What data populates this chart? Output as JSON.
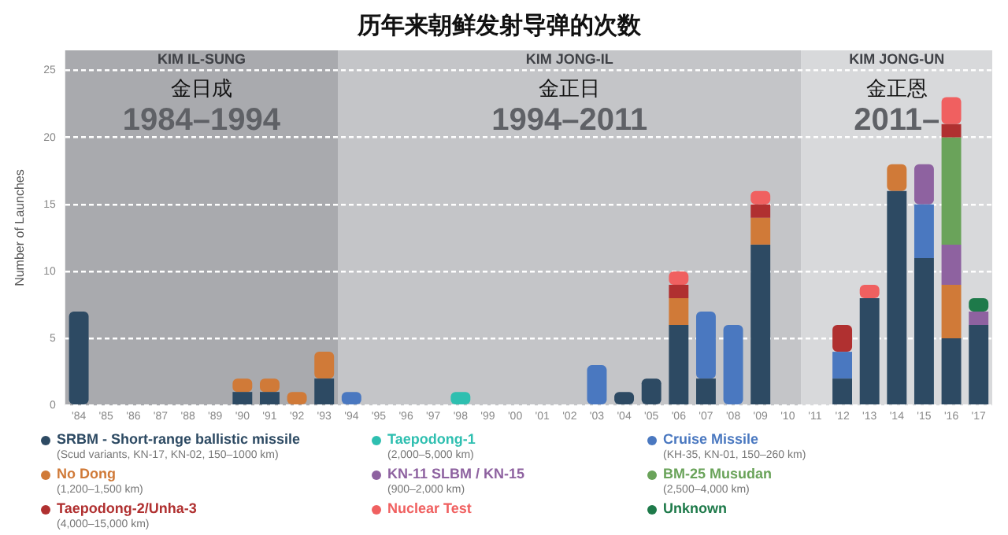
{
  "chart_data": {
    "type": "bar",
    "title": "历年来朝鲜发射导弹的次数",
    "ylabel": "Number of Launches",
    "categories": [
      "'84",
      "'85",
      "'86",
      "'87",
      "'88",
      "'89",
      "'90",
      "'91",
      "'92",
      "'93",
      "'94",
      "'95",
      "'96",
      "'97",
      "'98",
      "'99",
      "'00",
      "'01",
      "'02",
      "'03",
      "'04",
      "'05",
      "'06",
      "'07",
      "'08",
      "'09",
      "'10",
      "'11",
      "'12",
      "'13",
      "'14",
      "'15",
      "'16",
      "'17"
    ],
    "stacked": true,
    "ylim": [
      0,
      26.5
    ],
    "yticks": [
      0,
      5,
      10,
      15,
      20,
      25
    ],
    "grid": "y",
    "legend": "bottom",
    "series": [
      {
        "name": "SRBM - Short-range ballistic missile",
        "color": "#2d4a63",
        "values": [
          7,
          0,
          0,
          0,
          0,
          0,
          1,
          1,
          0,
          2,
          0,
          0,
          0,
          0,
          0,
          0,
          0,
          0,
          0,
          0,
          1,
          2,
          6,
          2,
          0,
          12,
          0,
          0,
          2,
          8,
          16,
          11,
          5,
          6
        ]
      },
      {
        "name": "Taepodong-1",
        "color": "#2ebfb0",
        "values": [
          0,
          0,
          0,
          0,
          0,
          0,
          0,
          0,
          0,
          0,
          0,
          0,
          0,
          0,
          1,
          0,
          0,
          0,
          0,
          0,
          0,
          0,
          0,
          0,
          0,
          0,
          0,
          0,
          0,
          0,
          0,
          0,
          0,
          0
        ]
      },
      {
        "name": "Cruise Missile",
        "color": "#4a78c0",
        "values": [
          0,
          0,
          0,
          0,
          0,
          0,
          0,
          0,
          0,
          0,
          1,
          0,
          0,
          0,
          0,
          0,
          0,
          0,
          0,
          3,
          0,
          0,
          0,
          5,
          6,
          0,
          0,
          0,
          2,
          0,
          0,
          4,
          0,
          0
        ]
      },
      {
        "name": "No Dong",
        "color": "#d07a38",
        "values": [
          0,
          0,
          0,
          0,
          0,
          0,
          1,
          1,
          1,
          2,
          0,
          0,
          0,
          0,
          0,
          0,
          0,
          0,
          0,
          0,
          0,
          0,
          2,
          0,
          0,
          2,
          0,
          0,
          0,
          0,
          2,
          0,
          4,
          0
        ]
      },
      {
        "name": "KN-11 SLBM / KN-15",
        "color": "#8e62a0",
        "values": [
          0,
          0,
          0,
          0,
          0,
          0,
          0,
          0,
          0,
          0,
          0,
          0,
          0,
          0,
          0,
          0,
          0,
          0,
          0,
          0,
          0,
          0,
          0,
          0,
          0,
          0,
          0,
          0,
          0,
          0,
          0,
          3,
          3,
          1
        ]
      },
      {
        "name": "BM-25 Musudan",
        "color": "#6aa35a",
        "values": [
          0,
          0,
          0,
          0,
          0,
          0,
          0,
          0,
          0,
          0,
          0,
          0,
          0,
          0,
          0,
          0,
          0,
          0,
          0,
          0,
          0,
          0,
          0,
          0,
          0,
          0,
          0,
          0,
          0,
          0,
          0,
          0,
          8,
          0
        ]
      },
      {
        "name": "Taepodong-2/Unha-3",
        "color": "#b03030",
        "values": [
          0,
          0,
          0,
          0,
          0,
          0,
          0,
          0,
          0,
          0,
          0,
          0,
          0,
          0,
          0,
          0,
          0,
          0,
          0,
          0,
          0,
          0,
          1,
          0,
          0,
          1,
          0,
          0,
          2,
          0,
          0,
          0,
          1,
          0
        ]
      },
      {
        "name": "Nuclear Test",
        "color": "#f06060",
        "values": [
          0,
          0,
          0,
          0,
          0,
          0,
          0,
          0,
          0,
          0,
          0,
          0,
          0,
          0,
          0,
          0,
          0,
          0,
          0,
          0,
          0,
          0,
          1,
          0,
          0,
          1,
          0,
          0,
          0,
          1,
          0,
          0,
          2,
          0
        ]
      },
      {
        "name": "Unknown",
        "color": "#1e7a4a",
        "values": [
          0,
          0,
          0,
          0,
          0,
          0,
          0,
          0,
          0,
          0,
          0,
          0,
          0,
          0,
          0,
          0,
          0,
          0,
          0,
          0,
          0,
          0,
          0,
          0,
          0,
          0,
          0,
          0,
          0,
          0,
          0,
          0,
          0,
          1
        ]
      }
    ],
    "annotations": [
      "(Scud variants, KN-17, KN-02, 150–1000 km)",
      "(2,000–5,000 km)",
      "(KH-35, KN-01, 150–260 km)",
      "(1,200–1,500 km)",
      "(900–2,000 km)",
      "(2,500–4,000 km)",
      "(4,000–15,000 km)"
    ],
    "bands": [
      {
        "axis": "x",
        "from": "'84",
        "to": "'94",
        "label": "KIM IL-SUNG\n金日成\n1984–1994",
        "color": "#a9aaae"
      },
      {
        "axis": "x",
        "from": "'94",
        "to": "'11",
        "label": "KIM JONG-IL\n金正日\n1994–2011",
        "color": "#c4c5c8"
      },
      {
        "axis": "x",
        "from": "'11",
        "to": "'17",
        "label": "KIM JONG-UN\n金正恩\n2011–",
        "color": "#d8d9db"
      }
    ]
  }
}
